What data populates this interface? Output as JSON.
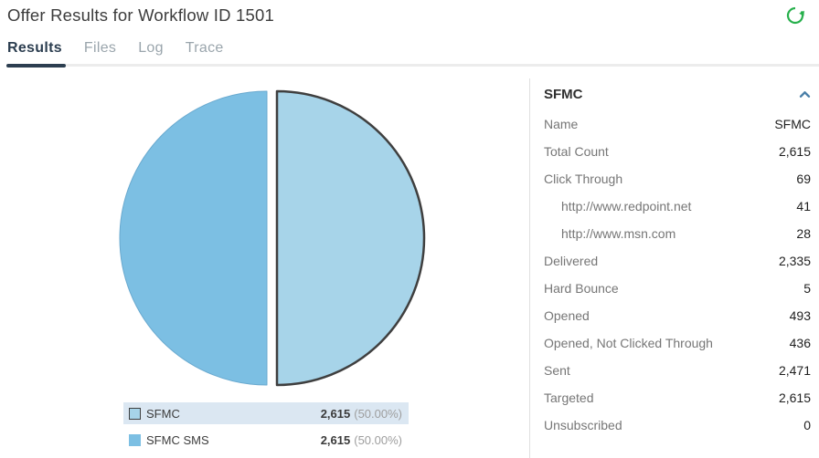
{
  "header": {
    "title": "Offer Results for Workflow ID 1501",
    "refresh_color": "#27b04c"
  },
  "tabs": [
    {
      "label": "Results",
      "active": true
    },
    {
      "label": "Files",
      "active": false
    },
    {
      "label": "Log",
      "active": false
    },
    {
      "label": "Trace",
      "active": false
    }
  ],
  "chart_data": {
    "type": "pie",
    "title": "",
    "slices": [
      {
        "label": "SFMC",
        "value": 2615,
        "pct": "50.00%",
        "color": "#a7d4e9",
        "selected": true
      },
      {
        "label": "SFMC SMS",
        "value": 2615,
        "pct": "50.00%",
        "color": "#7cbfe3",
        "selected": false
      }
    ],
    "selected_stroke": "#3f3f3f",
    "slice_stroke": "#69a9cf",
    "legend_position": "bottom",
    "legend": [
      {
        "label": "SFMC",
        "value": "2,615",
        "pct": "(50.00%)",
        "color": "#a7d4e9",
        "highlighted": true
      },
      {
        "label": "SFMC SMS",
        "value": "2,615",
        "pct": "(50.00%)",
        "color": "#7cbfe3",
        "highlighted": false
      }
    ]
  },
  "details": {
    "title": "SFMC",
    "chevron_color": "#4a7fa8",
    "rows": [
      {
        "label": "Name",
        "value": "SFMC",
        "indent": false
      },
      {
        "label": "Total Count",
        "value": "2,615",
        "indent": false
      },
      {
        "label": "Click Through",
        "value": "69",
        "indent": false
      },
      {
        "label": "http://www.redpoint.net",
        "value": "41",
        "indent": true
      },
      {
        "label": "http://www.msn.com",
        "value": "28",
        "indent": true
      },
      {
        "label": "Delivered",
        "value": "2,335",
        "indent": false
      },
      {
        "label": "Hard Bounce",
        "value": "5",
        "indent": false
      },
      {
        "label": "Opened",
        "value": "493",
        "indent": false
      },
      {
        "label": "Opened, Not Clicked Through",
        "value": "436",
        "indent": false
      },
      {
        "label": "Sent",
        "value": "2,471",
        "indent": false
      },
      {
        "label": "Targeted",
        "value": "2,615",
        "indent": false
      },
      {
        "label": "Unsubscribed",
        "value": "0",
        "indent": false
      }
    ]
  }
}
